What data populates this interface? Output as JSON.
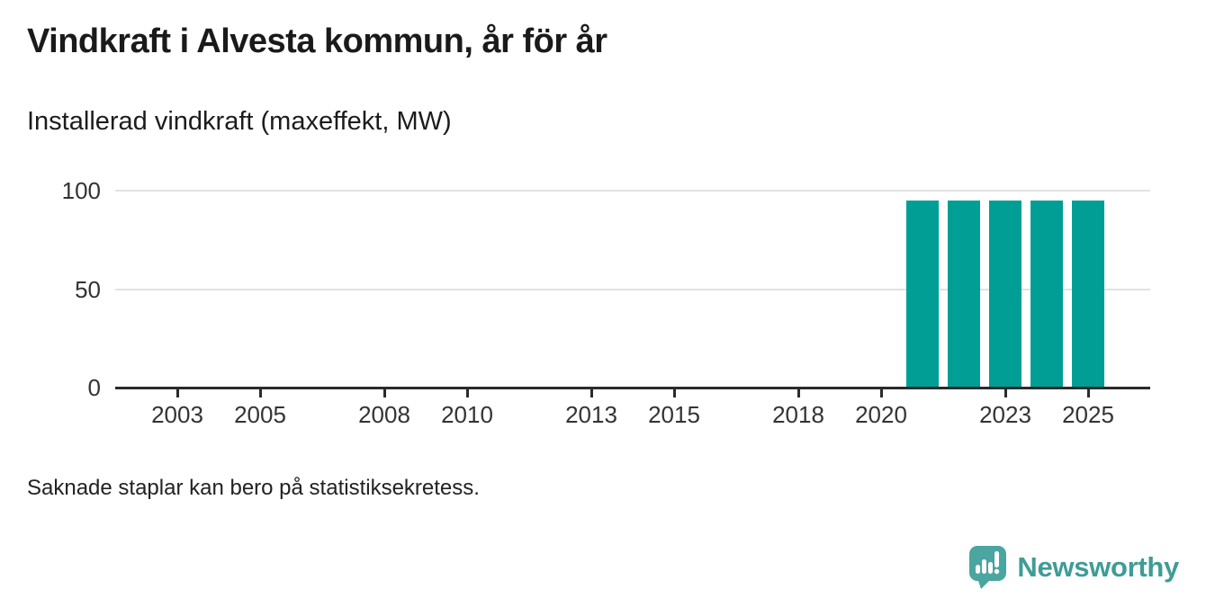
{
  "branding": {
    "logo_text": "Newsworthy",
    "logo_color": "#4BA5A0",
    "logo_text_color": "#3F9C96"
  },
  "chart_data": {
    "type": "bar",
    "title": "Vindkraft i Alvesta kommun, år för år",
    "subtitle": "Installerad vindkraft (maxeffekt, MW)",
    "note": "Saknade staplar kan bero på statistiksekretess.",
    "unit": "MW",
    "categories": [
      2021,
      2022,
      2023,
      2024,
      2025
    ],
    "values": [
      95,
      95,
      95,
      95,
      95
    ],
    "ylim": [
      0,
      100
    ],
    "y_ticks": [
      0,
      50,
      100
    ],
    "x_tick_labels": [
      "2003",
      "2005",
      "2008",
      "2010",
      "2013",
      "2015",
      "2018",
      "2020",
      "2023",
      "2025"
    ],
    "x_domain": [
      2001.5,
      2026.5
    ],
    "grid": true,
    "legend": "none",
    "bar_color": "#009E95",
    "axis_color": "#2B2B2B",
    "grid_color": "#E2E2E2"
  }
}
